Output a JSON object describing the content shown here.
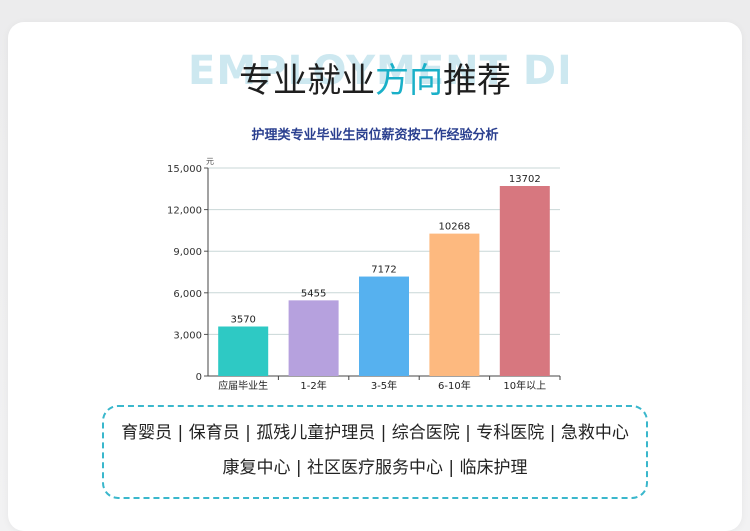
{
  "watermark": "EMPLOYMENT DIRECTION",
  "heading": {
    "main": "专业就业",
    "accent": "方向",
    "tail": "推荐"
  },
  "colors": {
    "accent": "#1ab0c8",
    "border": "#3ab7cc"
  },
  "chart_data": {
    "type": "bar",
    "title": "护理类专业毕业生岗位薪资按工作经验分析",
    "unit": "元",
    "categories": [
      "应届毕业生",
      "1-2年",
      "3-5年",
      "6-10年",
      "10年以上"
    ],
    "values": [
      3570,
      5455,
      7172,
      10268,
      13702
    ],
    "value_labels": [
      "3570",
      "5455",
      "7172",
      "10268",
      "13702"
    ],
    "colors": [
      "#2ec9c4",
      "#b6a1de",
      "#56b1ef",
      "#fdb97f",
      "#d7777f"
    ],
    "ylim": [
      0,
      15000
    ],
    "yticks": [
      0,
      3000,
      6000,
      9000,
      12000,
      15000
    ],
    "ytick_labels": [
      "0",
      "3,000",
      "6,000",
      "9,000",
      "12,000",
      "15,000"
    ],
    "grid": true,
    "legend": "none"
  },
  "tags": {
    "line1": "育婴员 | 保育员 | 孤残儿童护理员 | 综合医院 | 专科医院 | 急救中心",
    "line2": "康复中心 | 社区医疗服务中心 | 临床护理"
  }
}
